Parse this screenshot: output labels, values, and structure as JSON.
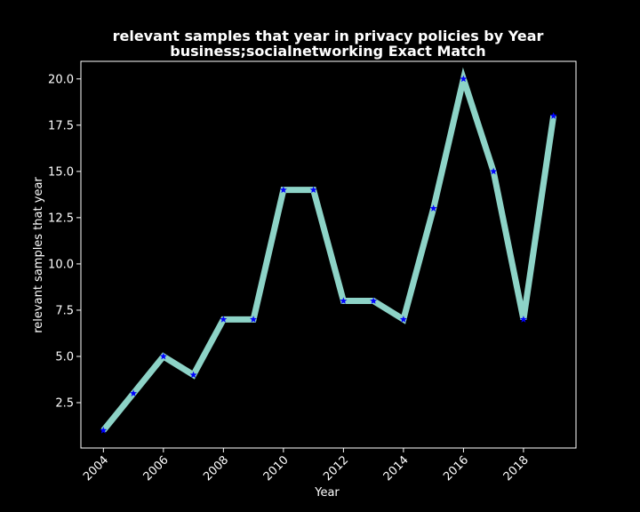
{
  "chart_data": {
    "type": "line",
    "title": "relevant samples that year in privacy policies by Year",
    "subtitle": "business;socialnetworking Exact Match",
    "xlabel": "Year",
    "ylabel": "relevant samples that year",
    "x": [
      2004,
      2005,
      2006,
      2007,
      2008,
      2009,
      2010,
      2011,
      2012,
      2013,
      2014,
      2015,
      2016,
      2017,
      2018,
      2019
    ],
    "series": [
      {
        "values": [
          1,
          3,
          5,
          4,
          7,
          7,
          14,
          14,
          8,
          8,
          7,
          13,
          20,
          15,
          7,
          18
        ]
      }
    ],
    "xlim": [
      2003.25,
      2019.75
    ],
    "ylim": [
      0.05,
      20.95
    ],
    "xticks": [
      2004,
      2006,
      2008,
      2010,
      2012,
      2014,
      2016,
      2018
    ],
    "xtick_labels": [
      "2004",
      "2006",
      "2008",
      "2010",
      "2012",
      "2014",
      "2016",
      "2018"
    ],
    "yticks": [
      2.5,
      5.0,
      7.5,
      10.0,
      12.5,
      15.0,
      17.5,
      20.0
    ],
    "ytick_labels": [
      "2.5",
      "5.0",
      "7.5",
      "10.0",
      "12.5",
      "15.0",
      "17.5",
      "20.0"
    ],
    "grid": false,
    "line_color": "#8dd3c7",
    "marker_color": "#0000ff",
    "marker": "star",
    "background": "#000000",
    "foreground": "#ffffff"
  }
}
